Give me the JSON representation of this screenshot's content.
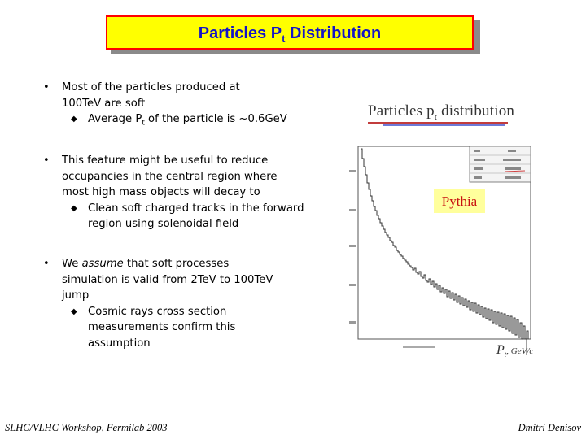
{
  "title": {
    "main": "Particles P",
    "sub": "t",
    "rest": " Distribution"
  },
  "bullets": [
    {
      "lines": [
        "Most of the particles produced at",
        "100TeV are soft"
      ],
      "sub": [
        {
          "pre": "Average P",
          "subscript": "t",
          "post": " of the particle is ~0.6GeV"
        }
      ]
    },
    {
      "lines": [
        "This feature might be useful to reduce",
        "occupancies in the central region where",
        "most high mass objects will decay to"
      ],
      "sub": [
        {
          "pre": "Clean soft charged tracks in the forward region using solenoidal field",
          "subscript": "",
          "post": ""
        }
      ]
    },
    {
      "lines": [
        "We assume that soft processes",
        "simulation is valid from 2TeV to 100TeV",
        "jump"
      ],
      "sub": [
        {
          "pre": "Cosmic rays cross section measurements confirm this assumption",
          "subscript": "",
          "post": ""
        }
      ]
    }
  ],
  "bullet3_emph": "assume",
  "plot": {
    "heading_main": "Particles p",
    "heading_sub": "t",
    "heading_rest": " distribution",
    "label": "Pythia",
    "axis_pt": "P",
    "axis_pt_sub": "t",
    "axis_unit": ", GeV/c"
  },
  "footer": {
    "left": "SLHC/VLHC Workshop, Fermilab 2003",
    "right": "Dmitri Denisov"
  },
  "colors": {
    "title_bg": "#ffff00",
    "title_border": "#ff0000",
    "title_text": "#1515c8",
    "pythia_bg": "#ffff9c",
    "pythia_text": "#c81010"
  }
}
